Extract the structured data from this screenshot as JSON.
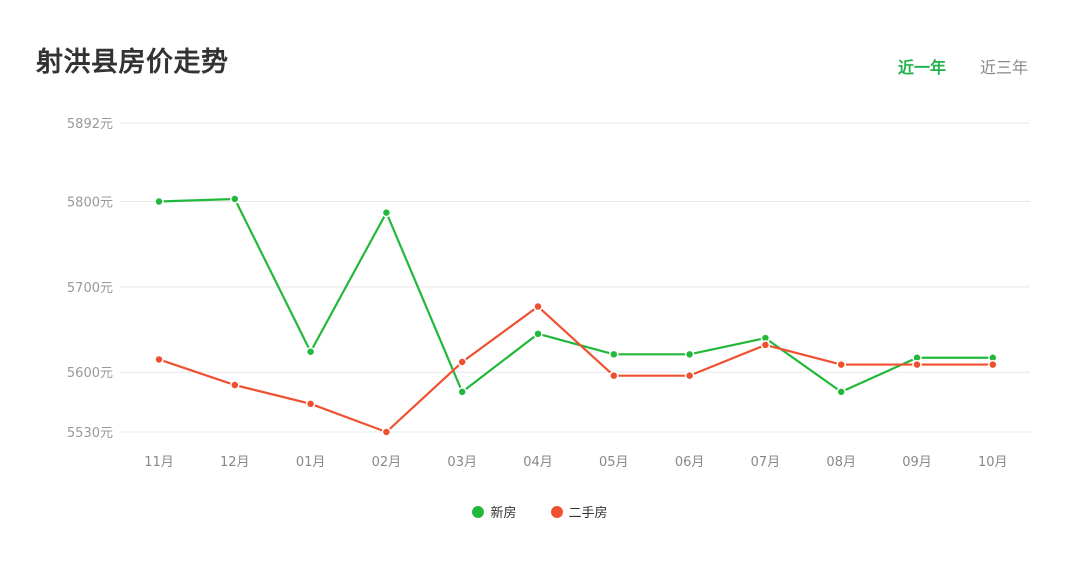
{
  "header": {
    "title": "射洪县房价走势",
    "tabs": [
      {
        "label": "近一年",
        "active": true
      },
      {
        "label": "近三年",
        "active": false
      }
    ]
  },
  "colors": {
    "new": "#22b83c",
    "second": "#ef5130",
    "active_tab": "#22b14c"
  },
  "chart_data": {
    "type": "line",
    "title": "射洪县房价走势",
    "categories": [
      "11月",
      "12月",
      "01月",
      "02月",
      "03月",
      "04月",
      "05月",
      "06月",
      "07月",
      "08月",
      "09月",
      "10月"
    ],
    "y_ticks": [
      5530,
      5600,
      5700,
      5800,
      5892
    ],
    "y_unit": "元",
    "ylim": [
      5530,
      5892
    ],
    "grid": true,
    "legend_position": "bottom",
    "series": [
      {
        "name": "新房",
        "values": [
          5800,
          5803,
          5624,
          5787,
          5577,
          5645,
          5621,
          5621,
          5640,
          5577,
          5617,
          5617
        ]
      },
      {
        "name": "二手房",
        "values": [
          5615,
          5585,
          5563,
          5530,
          5612,
          5677,
          5596,
          5596,
          5632,
          5609,
          5609,
          5609
        ]
      }
    ]
  }
}
